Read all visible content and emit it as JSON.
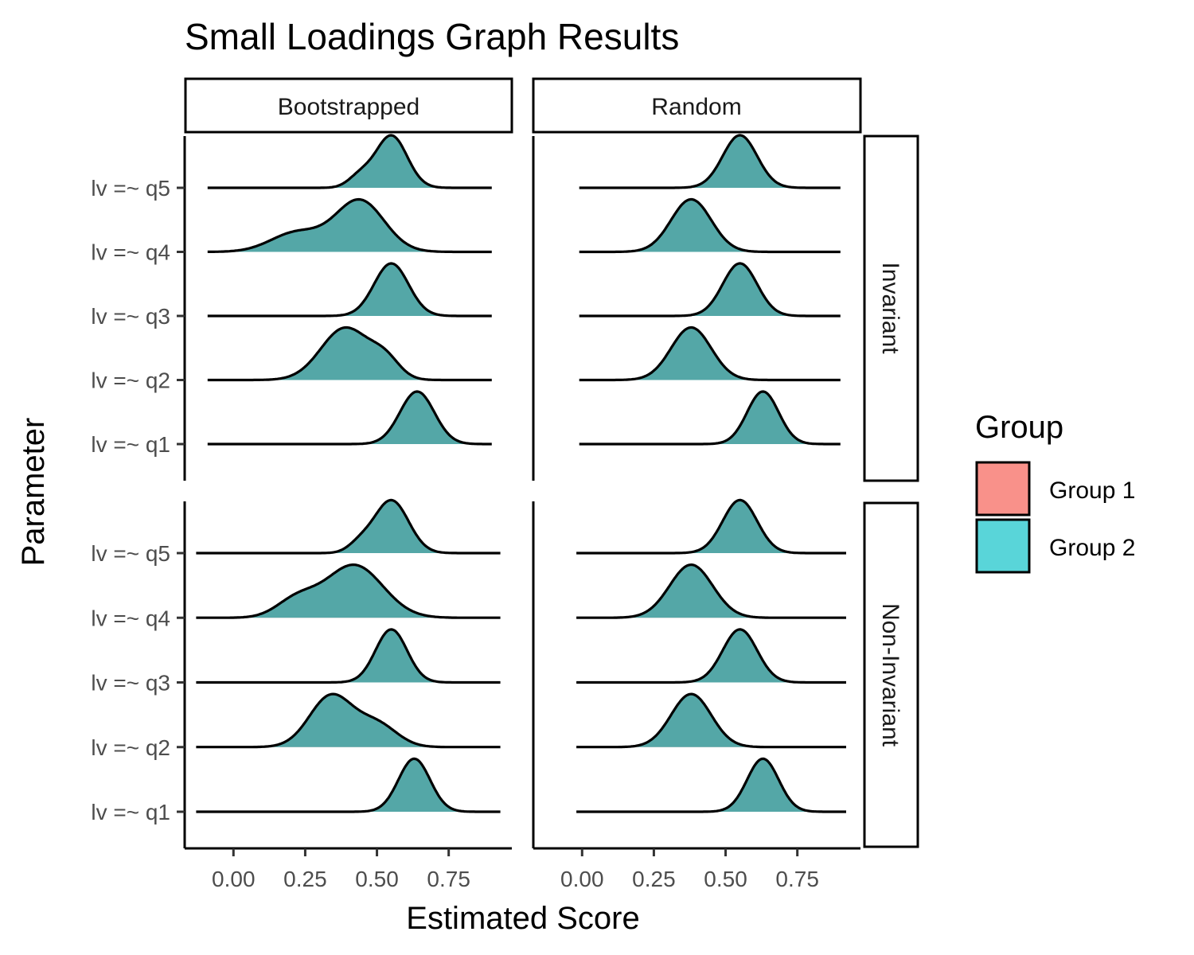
{
  "chart_data": {
    "type": "ridgeline",
    "title": "Small Loadings Graph Results",
    "xlabel": "Estimated Score",
    "ylabel": "Parameter",
    "xlim": [
      -0.17,
      0.97
    ],
    "x_ticks": [
      "0.00",
      "0.25",
      "0.50",
      "0.75"
    ],
    "x_tick_values": [
      0,
      0.25,
      0.5,
      0.75
    ],
    "y_categories": [
      "lv =~ q1",
      "lv =~ q2",
      "lv =~ q3",
      "lv =~ q4",
      "lv =~ q5"
    ],
    "column_facets": [
      "Bootstrapped",
      "Random"
    ],
    "row_facets": [
      "Invariant",
      "Non-Invariant"
    ],
    "legend": {
      "title": "Group",
      "position": "right",
      "entries": [
        {
          "name": "Group 1",
          "color": "#F8766D"
        },
        {
          "name": "Group 2",
          "color": "#00BFC4"
        }
      ]
    },
    "panels": [
      {
        "col": "Bootstrapped",
        "row": "Invariant",
        "ridges": [
          {
            "param": "lv =~ q1",
            "xmin": -0.09,
            "xmax": 0.9,
            "peaks": [
              [
                0.64,
                0.06,
                1.0
              ]
            ]
          },
          {
            "param": "lv =~ q2",
            "xmin": -0.09,
            "xmax": 0.9,
            "peaks": [
              [
                0.39,
                0.085,
                0.92
              ],
              [
                0.53,
                0.05,
                0.3
              ]
            ]
          },
          {
            "param": "lv =~ q3",
            "xmin": -0.09,
            "xmax": 0.9,
            "peaks": [
              [
                0.55,
                0.06,
                1.0
              ]
            ]
          },
          {
            "param": "lv =~ q4",
            "xmin": -0.09,
            "xmax": 0.9,
            "peaks": [
              [
                0.44,
                0.085,
                0.8
              ],
              [
                0.22,
                0.09,
                0.3
              ]
            ]
          },
          {
            "param": "lv =~ q5",
            "xmin": -0.09,
            "xmax": 0.9,
            "peaks": [
              [
                0.55,
                0.055,
                0.95
              ],
              [
                0.44,
                0.04,
                0.2
              ]
            ]
          }
        ]
      },
      {
        "col": "Random",
        "row": "Invariant",
        "ridges": [
          {
            "param": "lv =~ q1",
            "xmin": -0.01,
            "xmax": 0.9,
            "peaks": [
              [
                0.63,
                0.055,
                1.0
              ]
            ]
          },
          {
            "param": "lv =~ q2",
            "xmin": -0.01,
            "xmax": 0.9,
            "peaks": [
              [
                0.38,
                0.07,
                0.95
              ]
            ]
          },
          {
            "param": "lv =~ q3",
            "xmin": -0.01,
            "xmax": 0.9,
            "peaks": [
              [
                0.55,
                0.06,
                1.0
              ]
            ]
          },
          {
            "param": "lv =~ q4",
            "xmin": -0.01,
            "xmax": 0.9,
            "peaks": [
              [
                0.38,
                0.07,
                0.95
              ]
            ]
          },
          {
            "param": "lv =~ q5",
            "xmin": -0.01,
            "xmax": 0.9,
            "peaks": [
              [
                0.55,
                0.06,
                1.0
              ]
            ]
          }
        ]
      },
      {
        "col": "Bootstrapped",
        "row": "Non-Invariant",
        "ridges": [
          {
            "param": "lv =~ q1",
            "xmin": -0.13,
            "xmax": 0.93,
            "peaks": [
              [
                0.63,
                0.055,
                1.0
              ]
            ]
          },
          {
            "param": "lv =~ q2",
            "xmin": -0.13,
            "xmax": 0.93,
            "peaks": [
              [
                0.34,
                0.075,
                0.8
              ],
              [
                0.5,
                0.07,
                0.35
              ]
            ]
          },
          {
            "param": "lv =~ q3",
            "xmin": -0.13,
            "xmax": 0.93,
            "peaks": [
              [
                0.55,
                0.055,
                1.0
              ]
            ]
          },
          {
            "param": "lv =~ q4",
            "xmin": -0.13,
            "xmax": 0.93,
            "peaks": [
              [
                0.42,
                0.1,
                0.6
              ],
              [
                0.22,
                0.07,
                0.2
              ]
            ]
          },
          {
            "param": "lv =~ q5",
            "xmin": -0.13,
            "xmax": 0.93,
            "peaks": [
              [
                0.55,
                0.06,
                0.95
              ],
              [
                0.44,
                0.04,
                0.15
              ]
            ]
          }
        ]
      },
      {
        "col": "Random",
        "row": "Non-Invariant",
        "ridges": [
          {
            "param": "lv =~ q1",
            "xmin": -0.02,
            "xmax": 0.92,
            "peaks": [
              [
                0.63,
                0.055,
                1.0
              ]
            ]
          },
          {
            "param": "lv =~ q2",
            "xmin": -0.02,
            "xmax": 0.92,
            "peaks": [
              [
                0.38,
                0.07,
                0.95
              ]
            ]
          },
          {
            "param": "lv =~ q3",
            "xmin": -0.02,
            "xmax": 0.92,
            "peaks": [
              [
                0.55,
                0.06,
                1.0
              ]
            ]
          },
          {
            "param": "lv =~ q4",
            "xmin": -0.02,
            "xmax": 0.92,
            "peaks": [
              [
                0.38,
                0.075,
                0.95
              ]
            ]
          },
          {
            "param": "lv =~ q5",
            "xmin": -0.02,
            "xmax": 0.92,
            "peaks": [
              [
                0.55,
                0.06,
                1.0
              ]
            ]
          }
        ]
      }
    ],
    "grid": false
  }
}
